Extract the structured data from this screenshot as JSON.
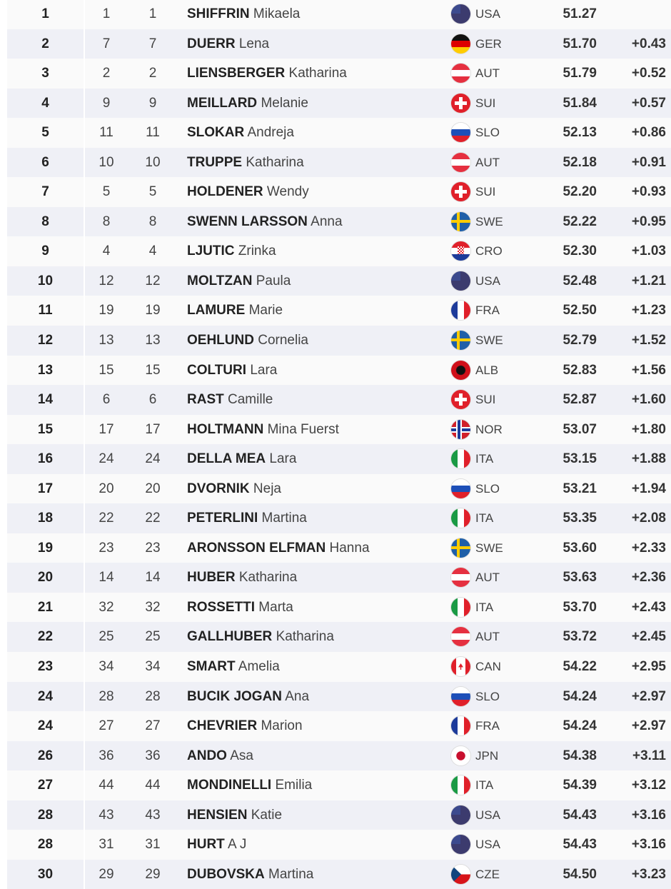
{
  "results": [
    {
      "rank": "1",
      "bib": "1",
      "fis": "1",
      "last": "SHIFFRIN",
      "first": "Mikaela",
      "nat": "USA",
      "time": "51.27",
      "diff": ""
    },
    {
      "rank": "2",
      "bib": "7",
      "fis": "7",
      "last": "DUERR",
      "first": "Lena",
      "nat": "GER",
      "time": "51.70",
      "diff": "+0.43"
    },
    {
      "rank": "3",
      "bib": "2",
      "fis": "2",
      "last": "LIENSBERGER",
      "first": "Katharina",
      "nat": "AUT",
      "time": "51.79",
      "diff": "+0.52"
    },
    {
      "rank": "4",
      "bib": "9",
      "fis": "9",
      "last": "MEILLARD",
      "first": "Melanie",
      "nat": "SUI",
      "time": "51.84",
      "diff": "+0.57"
    },
    {
      "rank": "5",
      "bib": "11",
      "fis": "11",
      "last": "SLOKAR",
      "first": "Andreja",
      "nat": "SLO",
      "time": "52.13",
      "diff": "+0.86"
    },
    {
      "rank": "6",
      "bib": "10",
      "fis": "10",
      "last": "TRUPPE",
      "first": "Katharina",
      "nat": "AUT",
      "time": "52.18",
      "diff": "+0.91"
    },
    {
      "rank": "7",
      "bib": "5",
      "fis": "5",
      "last": "HOLDENER",
      "first": "Wendy",
      "nat": "SUI",
      "time": "52.20",
      "diff": "+0.93"
    },
    {
      "rank": "8",
      "bib": "8",
      "fis": "8",
      "last": "SWENN LARSSON",
      "first": "Anna",
      "nat": "SWE",
      "time": "52.22",
      "diff": "+0.95"
    },
    {
      "rank": "9",
      "bib": "4",
      "fis": "4",
      "last": "LJUTIC",
      "first": "Zrinka",
      "nat": "CRO",
      "time": "52.30",
      "diff": "+1.03"
    },
    {
      "rank": "10",
      "bib": "12",
      "fis": "12",
      "last": "MOLTZAN",
      "first": "Paula",
      "nat": "USA",
      "time": "52.48",
      "diff": "+1.21"
    },
    {
      "rank": "11",
      "bib": "19",
      "fis": "19",
      "last": "LAMURE",
      "first": "Marie",
      "nat": "FRA",
      "time": "52.50",
      "diff": "+1.23"
    },
    {
      "rank": "12",
      "bib": "13",
      "fis": "13",
      "last": "OEHLUND",
      "first": "Cornelia",
      "nat": "SWE",
      "time": "52.79",
      "diff": "+1.52"
    },
    {
      "rank": "13",
      "bib": "15",
      "fis": "15",
      "last": "COLTURI",
      "first": "Lara",
      "nat": "ALB",
      "time": "52.83",
      "diff": "+1.56"
    },
    {
      "rank": "14",
      "bib": "6",
      "fis": "6",
      "last": "RAST",
      "first": "Camille",
      "nat": "SUI",
      "time": "52.87",
      "diff": "+1.60"
    },
    {
      "rank": "15",
      "bib": "17",
      "fis": "17",
      "last": "HOLTMANN",
      "first": "Mina Fuerst",
      "nat": "NOR",
      "time": "53.07",
      "diff": "+1.80"
    },
    {
      "rank": "16",
      "bib": "24",
      "fis": "24",
      "last": "DELLA MEA",
      "first": "Lara",
      "nat": "ITA",
      "time": "53.15",
      "diff": "+1.88"
    },
    {
      "rank": "17",
      "bib": "20",
      "fis": "20",
      "last": "DVORNIK",
      "first": "Neja",
      "nat": "SLO",
      "time": "53.21",
      "diff": "+1.94"
    },
    {
      "rank": "18",
      "bib": "22",
      "fis": "22",
      "last": "PETERLINI",
      "first": "Martina",
      "nat": "ITA",
      "time": "53.35",
      "diff": "+2.08"
    },
    {
      "rank": "19",
      "bib": "23",
      "fis": "23",
      "last": "ARONSSON ELFMAN",
      "first": "Hanna",
      "nat": "SWE",
      "time": "53.60",
      "diff": "+2.33"
    },
    {
      "rank": "20",
      "bib": "14",
      "fis": "14",
      "last": "HUBER",
      "first": "Katharina",
      "nat": "AUT",
      "time": "53.63",
      "diff": "+2.36"
    },
    {
      "rank": "21",
      "bib": "32",
      "fis": "32",
      "last": "ROSSETTI",
      "first": "Marta",
      "nat": "ITA",
      "time": "53.70",
      "diff": "+2.43"
    },
    {
      "rank": "22",
      "bib": "25",
      "fis": "25",
      "last": "GALLHUBER",
      "first": "Katharina",
      "nat": "AUT",
      "time": "53.72",
      "diff": "+2.45"
    },
    {
      "rank": "23",
      "bib": "34",
      "fis": "34",
      "last": "SMART",
      "first": "Amelia",
      "nat": "CAN",
      "time": "54.22",
      "diff": "+2.95"
    },
    {
      "rank": "24",
      "bib": "28",
      "fis": "28",
      "last": "BUCIK JOGAN",
      "first": "Ana",
      "nat": "SLO",
      "time": "54.24",
      "diff": "+2.97"
    },
    {
      "rank": "24",
      "bib": "27",
      "fis": "27",
      "last": "CHEVRIER",
      "first": "Marion",
      "nat": "FRA",
      "time": "54.24",
      "diff": "+2.97"
    },
    {
      "rank": "26",
      "bib": "36",
      "fis": "36",
      "last": "ANDO",
      "first": "Asa",
      "nat": "JPN",
      "time": "54.38",
      "diff": "+3.11"
    },
    {
      "rank": "27",
      "bib": "44",
      "fis": "44",
      "last": "MONDINELLI",
      "first": "Emilia",
      "nat": "ITA",
      "time": "54.39",
      "diff": "+3.12"
    },
    {
      "rank": "28",
      "bib": "43",
      "fis": "43",
      "last": "HENSIEN",
      "first": "Katie",
      "nat": "USA",
      "time": "54.43",
      "diff": "+3.16"
    },
    {
      "rank": "28",
      "bib": "31",
      "fis": "31",
      "last": "HURT",
      "first": "A J",
      "nat": "USA",
      "time": "54.43",
      "diff": "+3.16"
    },
    {
      "rank": "30",
      "bib": "29",
      "fis": "29",
      "last": "DUBOVSKA",
      "first": "Martina",
      "nat": "CZE",
      "time": "54.50",
      "diff": "+3.23"
    }
  ]
}
